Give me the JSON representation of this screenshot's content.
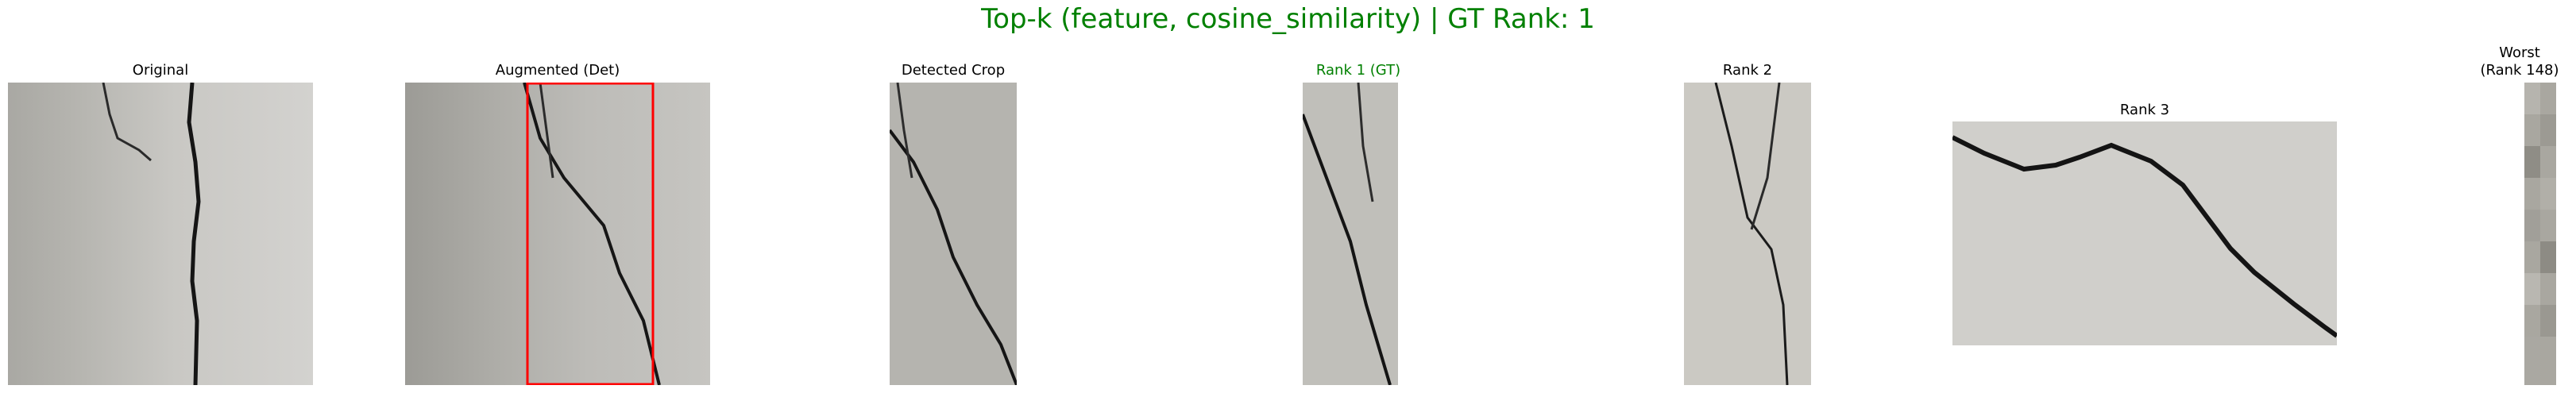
{
  "figure": {
    "title": "Top-k (feature, cosine_similarity) | GT Rank: 1",
    "title_color": "#008000",
    "gt_color": "#008000",
    "detection_box_color": "#ff0000"
  },
  "panels": [
    {
      "key": "original",
      "title": "Original"
    },
    {
      "key": "augmented",
      "title": "Augmented (Det)"
    },
    {
      "key": "crop",
      "title": "Detected Crop"
    },
    {
      "key": "rank1",
      "title": "Rank 1 (GT)"
    },
    {
      "key": "rank2",
      "title": "Rank 2"
    },
    {
      "key": "rank3",
      "title": "Rank 3"
    },
    {
      "key": "worst",
      "title": "Worst\n(Rank 148)"
    }
  ]
}
